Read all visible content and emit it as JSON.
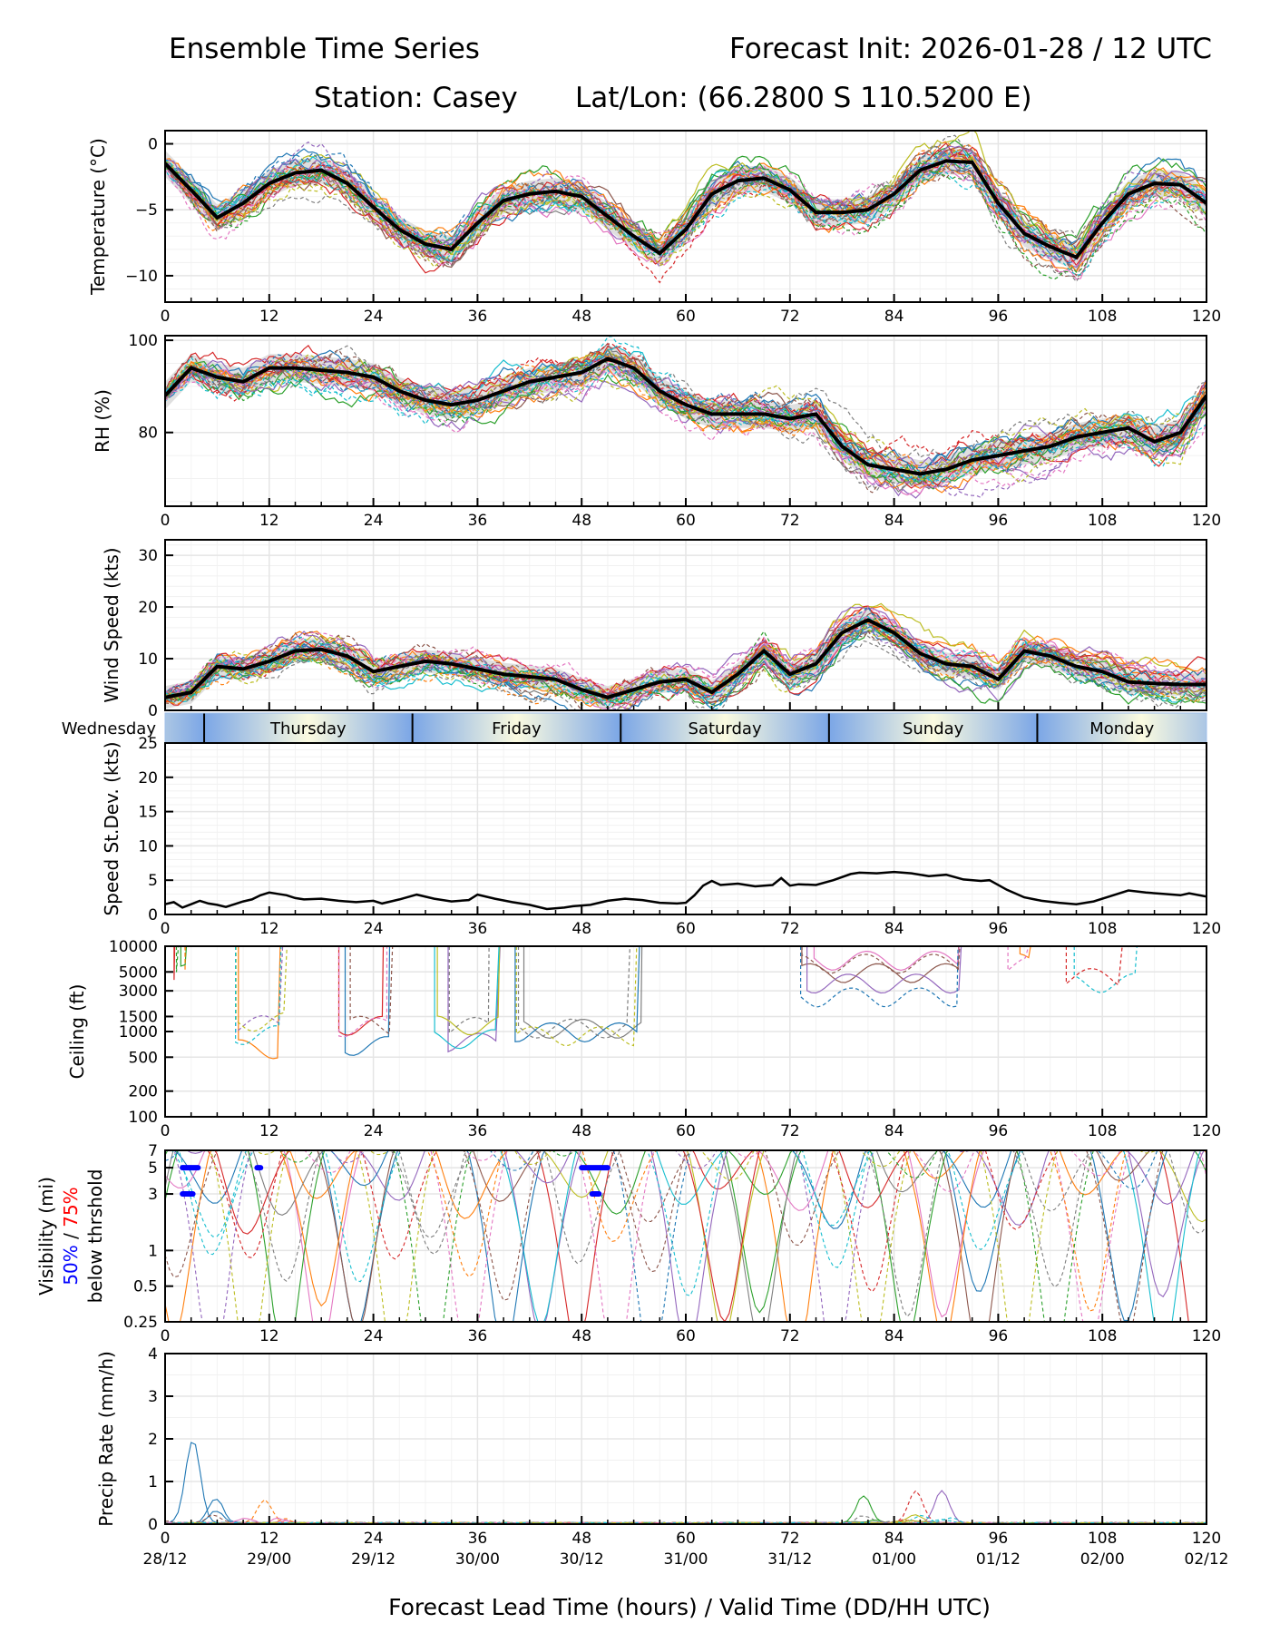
{
  "header": {
    "title_left": "Ensemble Time Series",
    "title_right": "Forecast Init: 2026-01-28 / 12 UTC",
    "subtitle_station": "Station: Casey",
    "subtitle_latlon": "Lat/Lon: (66.2800 S 110.5200 E)"
  },
  "chart_data": [
    {
      "id": "temperature",
      "type": "line",
      "ylabel": "Temperature (°C)",
      "ylim": [
        -12,
        1
      ],
      "yticks": [
        0,
        -5,
        -10
      ],
      "xlim": [
        0,
        120
      ],
      "xticks": [
        0,
        12,
        24,
        36,
        48,
        60,
        72,
        84,
        96,
        108,
        120
      ],
      "grid": true,
      "mean": {
        "x": [
          0,
          3,
          6,
          9,
          12,
          15,
          18,
          21,
          24,
          27,
          30,
          33,
          36,
          39,
          42,
          45,
          48,
          51,
          54,
          57,
          60,
          63,
          66,
          69,
          72,
          75,
          78,
          81,
          84,
          87,
          90,
          93,
          96,
          99,
          102,
          105,
          108,
          111,
          114,
          117,
          120
        ],
        "y": [
          -1.5,
          -3.5,
          -5.6,
          -4.5,
          -3.0,
          -2.2,
          -2.0,
          -3.0,
          -4.8,
          -6.5,
          -7.6,
          -8.0,
          -6.0,
          -4.3,
          -3.8,
          -3.6,
          -4.0,
          -5.5,
          -7.0,
          -8.3,
          -6.5,
          -3.8,
          -2.8,
          -2.6,
          -3.5,
          -5.2,
          -5.2,
          -5.0,
          -3.8,
          -2.0,
          -1.3,
          -1.4,
          -4.5,
          -6.8,
          -7.8,
          -8.6,
          -6.0,
          -3.8,
          -3.0,
          -3.1,
          -4.5
        ]
      },
      "spread": 1.0,
      "members": 30
    },
    {
      "id": "rh",
      "type": "line",
      "ylabel": "RH (%)",
      "ylim": [
        64,
        101
      ],
      "yticks": [
        100,
        80
      ],
      "xlim": [
        0,
        120
      ],
      "xticks": [
        0,
        12,
        24,
        36,
        48,
        60,
        72,
        84,
        96,
        108,
        120
      ],
      "grid": true,
      "mean": {
        "x": [
          0,
          3,
          6,
          9,
          12,
          15,
          18,
          21,
          24,
          27,
          30,
          33,
          36,
          39,
          42,
          45,
          48,
          51,
          54,
          57,
          60,
          63,
          66,
          69,
          72,
          75,
          78,
          81,
          84,
          87,
          90,
          93,
          96,
          99,
          102,
          105,
          108,
          111,
          114,
          117,
          120
        ],
        "y": [
          88,
          94,
          92,
          91,
          94,
          94,
          93.5,
          93,
          92,
          89,
          87,
          86,
          87,
          89,
          91,
          92,
          93,
          96,
          94,
          89,
          86,
          84,
          84,
          84,
          83,
          84,
          77,
          73,
          72,
          71,
          72,
          74,
          75,
          76,
          77,
          79,
          80,
          81,
          78,
          80,
          88
        ]
      },
      "spread": 3.0,
      "members": 30
    },
    {
      "id": "wind_speed",
      "type": "line",
      "ylabel": "Wind Speed (kts)",
      "ylim": [
        0,
        33
      ],
      "yticks": [
        0,
        10,
        20,
        30
      ],
      "xlim": [
        0,
        120
      ],
      "xticks": [
        0,
        12,
        24,
        36,
        48,
        60,
        72,
        84,
        96,
        108,
        120
      ],
      "grid": true,
      "mean": {
        "x": [
          0,
          3,
          6,
          9,
          12,
          15,
          18,
          21,
          24,
          27,
          30,
          33,
          36,
          39,
          42,
          45,
          48,
          51,
          54,
          57,
          60,
          63,
          66,
          69,
          72,
          75,
          78,
          81,
          84,
          87,
          90,
          93,
          96,
          99,
          102,
          105,
          108,
          111,
          114,
          117,
          120
        ],
        "y": [
          2.5,
          3.5,
          8.5,
          8.0,
          9.5,
          11.5,
          11.8,
          10.5,
          7.5,
          8.5,
          9.5,
          9.0,
          8.0,
          7.0,
          6.5,
          6.0,
          4.0,
          2.5,
          4.0,
          5.5,
          6.0,
          3.5,
          7.0,
          11.5,
          7.0,
          9.0,
          15.0,
          17.5,
          15.0,
          11.0,
          9.0,
          8.5,
          6.0,
          11.5,
          10.5,
          8.5,
          7.5,
          5.5,
          5.2,
          5.0,
          5.0
        ]
      },
      "spread": 2.2,
      "members": 30
    },
    {
      "id": "day_band",
      "type": "table",
      "days": [
        "Wednesday",
        "Thursday",
        "Friday",
        "Saturday",
        "Sunday",
        "Monday"
      ],
      "boundaries_hours": [
        4.5,
        28.5,
        52.5,
        76.5,
        100.5
      ]
    },
    {
      "id": "speed_stdev",
      "type": "line",
      "ylabel": "Speed St.Dev. (kts)",
      "ylim": [
        0,
        25
      ],
      "yticks": [
        0,
        5,
        10,
        15,
        20,
        25
      ],
      "xlim": [
        0,
        120
      ],
      "xticks": [
        0,
        12,
        24,
        36,
        48,
        60,
        72,
        84,
        96,
        108,
        120
      ],
      "grid": true,
      "x": [
        0,
        1,
        2,
        3,
        4,
        5,
        6,
        7,
        8,
        9,
        10,
        11,
        12,
        13,
        14,
        15,
        16,
        18,
        20,
        22,
        24,
        25,
        27,
        29,
        31,
        33,
        35,
        36,
        38,
        40,
        42,
        44,
        46,
        47,
        49,
        51,
        53,
        55,
        57,
        59,
        60,
        61,
        62,
        63,
        64,
        66,
        68,
        70,
        71,
        72,
        73,
        75,
        77,
        79,
        80,
        82,
        84,
        86,
        88,
        90,
        92,
        94,
        95,
        97,
        99,
        101,
        103,
        105,
        107,
        109,
        111,
        113,
        115,
        117,
        118,
        120
      ],
      "y": [
        1.5,
        1.8,
        1.0,
        1.5,
        2.0,
        1.6,
        1.4,
        1.1,
        1.5,
        1.9,
        2.2,
        2.8,
        3.2,
        3.0,
        2.8,
        2.4,
        2.2,
        2.3,
        2.0,
        1.8,
        2.0,
        1.6,
        2.2,
        2.9,
        2.3,
        1.9,
        2.1,
        2.9,
        2.3,
        1.8,
        1.4,
        0.8,
        1.0,
        1.2,
        1.4,
        2.0,
        2.3,
        2.1,
        1.7,
        1.6,
        1.7,
        2.8,
        4.2,
        4.9,
        4.3,
        4.5,
        4.1,
        4.3,
        5.3,
        4.2,
        4.4,
        4.3,
        5.0,
        5.9,
        6.1,
        6.0,
        6.2,
        6.0,
        5.6,
        5.8,
        5.1,
        4.9,
        5.0,
        3.6,
        2.5,
        2.0,
        1.7,
        1.5,
        1.9,
        2.7,
        3.5,
        3.2,
        3.0,
        2.8,
        3.1,
        2.6
      ]
    },
    {
      "id": "ceiling",
      "type": "line",
      "ylabel": "Ceiling (ft)",
      "yscale": "log",
      "ylim": [
        100,
        10000
      ],
      "yticks": [
        10000,
        5000,
        3000,
        1500,
        1000,
        500,
        200,
        100
      ],
      "xlim": [
        0,
        120
      ],
      "xticks": [
        0,
        12,
        24,
        36,
        48,
        60,
        72,
        84,
        96,
        108,
        120
      ],
      "grid": true,
      "members": 30
    },
    {
      "id": "visibility",
      "type": "line",
      "ylabel": "Visibility (mi)",
      "ylabel_line2_blue": "50%",
      "ylabel_line2_sep": " / ",
      "ylabel_line2_red": "75%",
      "ylabel_line3": "below thrshold",
      "yscale": "log",
      "ylim": [
        0.25,
        7
      ],
      "yticks": [
        7,
        5,
        3,
        1,
        0.5,
        0.25
      ],
      "ytick_labels": [
        "7",
        "5",
        "3",
        "1",
        "0.5",
        "0.25"
      ],
      "xlim": [
        0,
        120
      ],
      "xticks": [
        0,
        12,
        24,
        36,
        48,
        60,
        72,
        84,
        96,
        108,
        120
      ],
      "grid": true,
      "threshold_50pct_bars": [
        {
          "level": 5,
          "x0": 2.0,
          "x1": 3.8
        },
        {
          "level": 3,
          "x0": 2.0,
          "x1": 3.2
        },
        {
          "level": 5,
          "x0": 10.6,
          "x1": 11.0
        },
        {
          "level": 5,
          "x0": 48.0,
          "x1": 51.0
        },
        {
          "level": 3,
          "x0": 49.2,
          "x1": 50.0
        }
      ],
      "members": 30
    },
    {
      "id": "precip_rate",
      "type": "line",
      "ylabel": "Precip Rate (mm/h)",
      "ylim": [
        0,
        4
      ],
      "yticks": [
        0,
        1,
        2,
        3,
        4
      ],
      "xlim": [
        0,
        120
      ],
      "xticks": [
        0,
        12,
        24,
        36,
        48,
        60,
        72,
        84,
        96,
        108,
        120
      ],
      "xtick_valid": [
        "28/12",
        "29/00",
        "29/12",
        "30/00",
        "30/12",
        "31/00",
        "31/12",
        "01/00",
        "01/12",
        "02/00",
        "02/12"
      ],
      "xlabel": "Forecast Lead Time (hours) / Valid Time (DD/HH UTC)",
      "grid": true,
      "notable_peaks": [
        {
          "x": 3.2,
          "y": 1.95
        },
        {
          "x": 11.5,
          "y": 0.55
        },
        {
          "x": 80.5,
          "y": 0.65
        },
        {
          "x": 86.5,
          "y": 0.75
        },
        {
          "x": 89.5,
          "y": 0.75
        }
      ],
      "members": 30
    }
  ],
  "colors": {
    "mean": "#000000",
    "spread": "#d9d9d9",
    "grid": "#e5e5e5",
    "threshold_50": "#0000ff",
    "threshold_75": "#ff0000",
    "members": [
      "#1f77b4",
      "#ff7f0e",
      "#2ca02c",
      "#d62728",
      "#9467bd",
      "#8c564b",
      "#e377c2",
      "#7f7f7f",
      "#bcbd22",
      "#17becf"
    ],
    "day_edge": "#7ba6e6",
    "day_center": "#fbfbe0"
  }
}
